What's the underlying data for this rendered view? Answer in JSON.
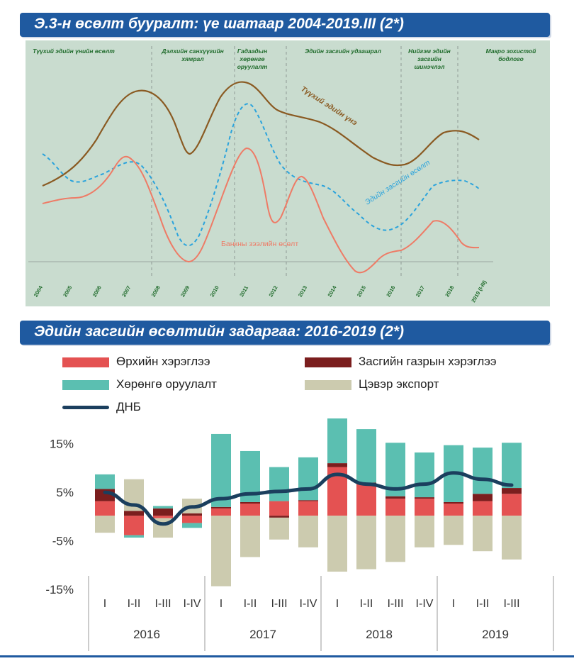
{
  "top": {
    "title": "Э.3-н өсөлт бууралт: үе шатаар 2004-2019.III (2*)",
    "colors": {
      "background": "#c9dccf",
      "price": "#8a5a22",
      "growth": "#2aa3dc",
      "credit": "#ee7b66"
    },
    "phases": [
      "Түүхий эдийн үнийн өсөлт",
      "Дэлхийн санхүүгийн хямрал",
      "Гадаадын хөрөнгө оруулалт",
      "Эдийн засгийн удаашрал",
      "Нийгэм эдийн засгийн шинэчлэл",
      "Макро зохистой бодлого"
    ],
    "series_labels": {
      "price": "Түүхий эдийн үнэ",
      "growth": "Эдийн засгийн өсөлт",
      "credit": "Банкны зээлийн өсөлт"
    },
    "years": [
      "2004",
      "2005",
      "2006",
      "2007",
      "2008",
      "2009",
      "2010",
      "2011",
      "2012",
      "2013",
      "2014",
      "2015",
      "2016",
      "2017",
      "2018",
      "2019 (I-III)"
    ]
  },
  "chart_data": {
    "type": "bar",
    "title": "Эдийн засгийн өсөлтийн задаргаа: 2016-2019 (2*)",
    "xlabel": "",
    "ylabel": "",
    "ylim": [
      -15,
      20
    ],
    "yticks": [
      "15%",
      "5%",
      "-5%",
      "-15%"
    ],
    "categories": [
      "I",
      "I-II",
      "I-III",
      "I-IV",
      "I",
      "I-II",
      "I-III",
      "I-IV",
      "I",
      "I-II",
      "I-III",
      "I-IV",
      "I",
      "I-II",
      "I-III"
    ],
    "years": [
      "2016",
      "2017",
      "2018",
      "2019"
    ],
    "series": [
      {
        "name": "Өрхийн хэрэглээ",
        "color": "#e45252",
        "values": [
          3.0,
          -4.0,
          -0.5,
          -1.5,
          1.5,
          2.5,
          3.0,
          3.0,
          10.0,
          6.5,
          3.5,
          3.5,
          2.5,
          3.0,
          4.5
        ]
      },
      {
        "name": "Засгийн газрын хэрэглээ",
        "color": "#7b1e1e",
        "values": [
          2.5,
          1.0,
          1.5,
          0.5,
          0.3,
          0.3,
          -0.4,
          0.2,
          0.8,
          0.3,
          0.5,
          0.3,
          0.3,
          1.5,
          1.2
        ]
      },
      {
        "name": "Хөрөнгө оруулалт",
        "color": "#5bbfb1",
        "values": [
          3.0,
          -0.5,
          0.5,
          -1.0,
          15.0,
          10.5,
          7.0,
          8.8,
          9.2,
          11.0,
          11.0,
          9.2,
          11.7,
          9.5,
          9.3
        ]
      },
      {
        "name": "Цэвэр экспорт",
        "color": "#cccbaf",
        "values": [
          -3.5,
          6.5,
          -4.0,
          3.0,
          -14.5,
          -8.5,
          -4.5,
          -6.5,
          -11.5,
          -11.0,
          -9.5,
          -6.5,
          -6.0,
          -7.3,
          -9.0
        ]
      }
    ],
    "line": {
      "name": "ДНБ",
      "color": "#1b3f5e",
      "values": [
        4.8,
        2.2,
        -1.7,
        1.8,
        3.5,
        4.5,
        5.0,
        5.5,
        8.5,
        6.5,
        5.5,
        6.5,
        8.8,
        7.5,
        6.3
      ]
    }
  }
}
